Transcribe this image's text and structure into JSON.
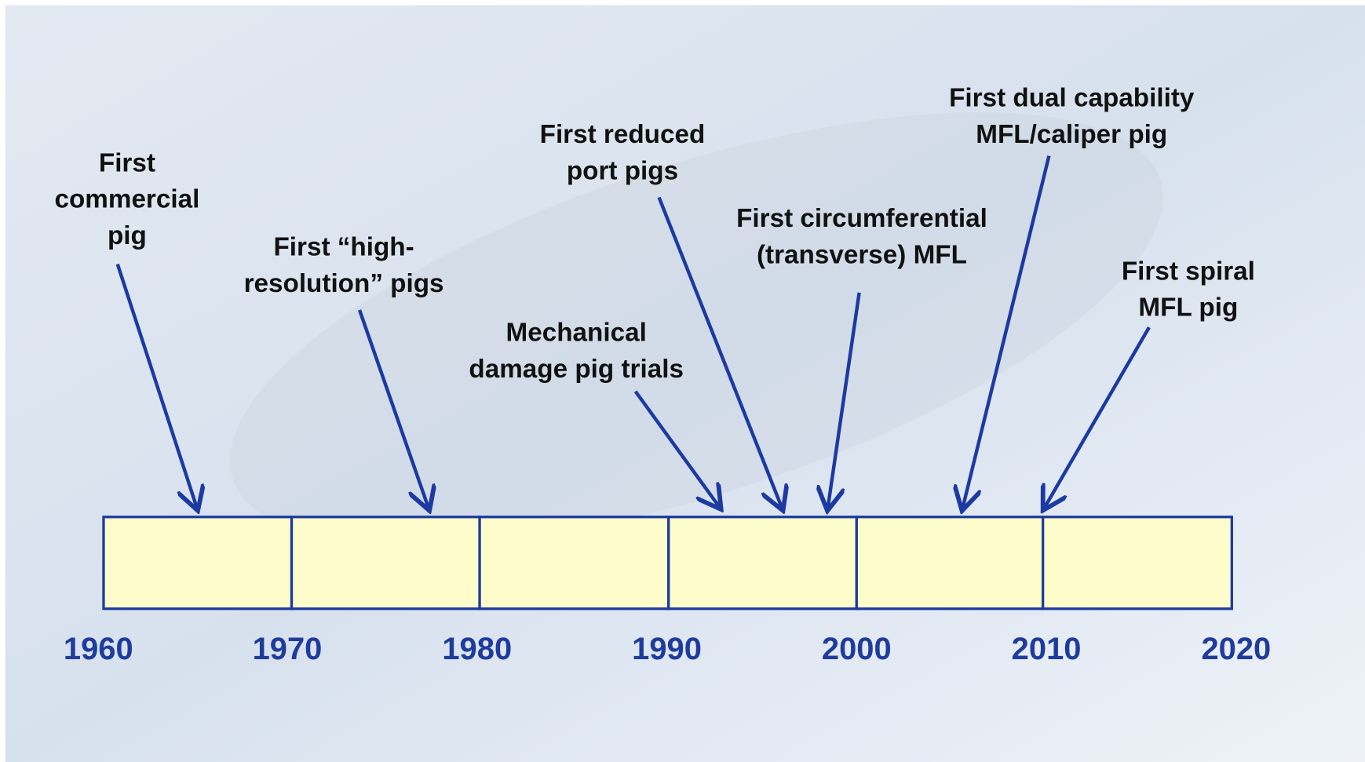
{
  "timeline": {
    "years": [
      "1960",
      "1970",
      "1980",
      "1990",
      "2000",
      "2010",
      "2020"
    ],
    "events": [
      {
        "lines": [
          "First",
          "commercial",
          "pig"
        ]
      },
      {
        "lines": [
          "First “high-",
          "resolution” pigs"
        ]
      },
      {
        "lines": [
          "Mechanical",
          "damage pig trials"
        ]
      },
      {
        "lines": [
          "First reduced",
          "port pigs"
        ]
      },
      {
        "lines": [
          "First circumferential",
          "(transverse) MFL"
        ]
      },
      {
        "lines": [
          "First dual capability",
          "MFL/caliper pig"
        ]
      },
      {
        "lines": [
          "First spiral",
          "MFL pig"
        ]
      }
    ]
  }
}
